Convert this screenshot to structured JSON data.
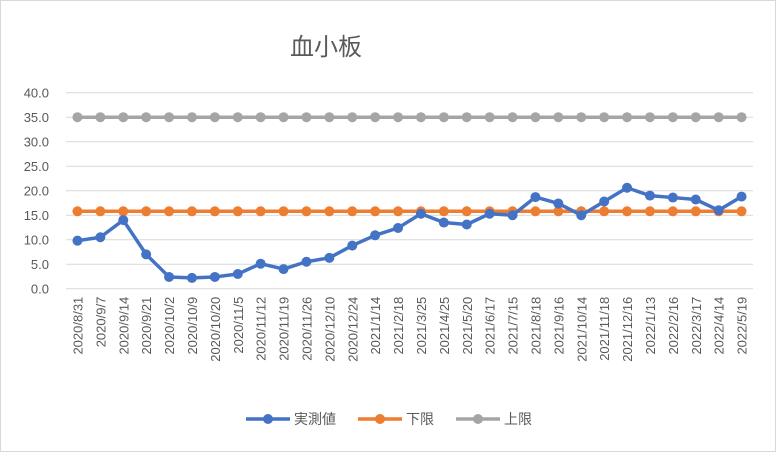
{
  "chart_data": {
    "type": "line",
    "title": "血小板",
    "xlabel": "",
    "ylabel": "",
    "ylim": [
      0,
      40
    ],
    "yticks": [
      "0.0",
      "5.0",
      "10.0",
      "15.0",
      "20.0",
      "25.0",
      "30.0",
      "35.0",
      "40.0"
    ],
    "grid": true,
    "legend_position": "bottom",
    "categories": [
      "2020/8/31",
      "2020/9/7",
      "2020/9/14",
      "2020/9/21",
      "2020/10/2",
      "2020/10/9",
      "2020/10/20",
      "2020/11/5",
      "2020/11/12",
      "2020/11/19",
      "2020/11/26",
      "2020/12/10",
      "2020/12/24",
      "2021/1/14",
      "2021/2/18",
      "2021/3/25",
      "2021/4/25",
      "2021/5/20",
      "2021/6/17",
      "2021/7/15",
      "2021/8/18",
      "2021/9/16",
      "2021/10/14",
      "2021/11/18",
      "2021/12/16",
      "2022/1/13",
      "2022/2/16",
      "2022/3/17",
      "2022/4/14",
      "2022/5/19"
    ],
    "series": [
      {
        "name": "実測値",
        "color": "#4472c4",
        "values": [
          9.8,
          10.5,
          14.0,
          7.0,
          2.4,
          2.2,
          2.4,
          3.0,
          5.1,
          4.0,
          5.5,
          6.3,
          8.8,
          10.9,
          12.4,
          15.3,
          13.5,
          13.1,
          15.3,
          15.0,
          18.7,
          17.4,
          15.0,
          17.8,
          20.6,
          19.0,
          18.6,
          18.2,
          16.0,
          18.8
        ]
      },
      {
        "name": "下限",
        "color": "#ed7d31",
        "values": [
          15.8,
          15.8,
          15.8,
          15.8,
          15.8,
          15.8,
          15.8,
          15.8,
          15.8,
          15.8,
          15.8,
          15.8,
          15.8,
          15.8,
          15.8,
          15.8,
          15.8,
          15.8,
          15.8,
          15.8,
          15.8,
          15.8,
          15.8,
          15.8,
          15.8,
          15.8,
          15.8,
          15.8,
          15.8,
          15.8
        ]
      },
      {
        "name": "上限",
        "color": "#a5a5a5",
        "values": [
          35,
          35,
          35,
          35,
          35,
          35,
          35,
          35,
          35,
          35,
          35,
          35,
          35,
          35,
          35,
          35,
          35,
          35,
          35,
          35,
          35,
          35,
          35,
          35,
          35,
          35,
          35,
          35,
          35,
          35
        ]
      }
    ]
  }
}
